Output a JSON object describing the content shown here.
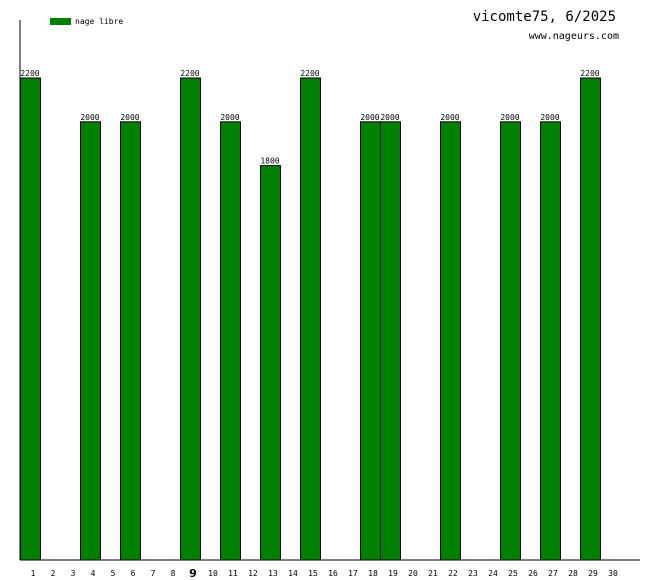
{
  "chart_data": {
    "type": "bar",
    "title": "vicomte75, 6/2025",
    "subtitle": "www.nageurs.com",
    "xlabel": "",
    "ylabel": "",
    "ylim": [
      0,
      2400
    ],
    "grid": false,
    "legend_position": "top-left",
    "highlight_category": "9",
    "categories": [
      "1",
      "2",
      "3",
      "4",
      "5",
      "6",
      "7",
      "8",
      "9",
      "10",
      "11",
      "12",
      "13",
      "14",
      "15",
      "16",
      "17",
      "18",
      "19",
      "20",
      "21",
      "22",
      "23",
      "24",
      "25",
      "26",
      "27",
      "28",
      "29",
      "30"
    ],
    "series": [
      {
        "name": "nage libre",
        "color": "#008000",
        "values": [
          2200,
          null,
          null,
          2000,
          null,
          2000,
          null,
          null,
          2200,
          null,
          2000,
          null,
          1800,
          null,
          2200,
          null,
          null,
          2000,
          2000,
          null,
          null,
          2000,
          null,
          null,
          2000,
          null,
          2000,
          null,
          2200,
          null
        ]
      }
    ]
  }
}
